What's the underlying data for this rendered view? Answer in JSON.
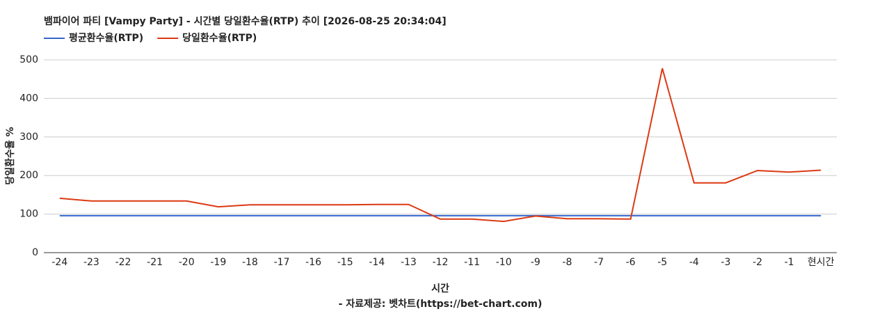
{
  "chart_data": {
    "type": "line",
    "title": "뱀파이어 파티 [Vampy Party] - 시간별 당일환수율(RTP) 추이 [2026-08-25 20:34:04]",
    "x_label": "시간",
    "y_label": "당일환수율 %",
    "footer": "- 자료제공: 벳차트(https://bet-chart.com)",
    "categories": [
      "-24",
      "-23",
      "-22",
      "-21",
      "-20",
      "-19",
      "-18",
      "-17",
      "-16",
      "-15",
      "-14",
      "-13",
      "-12",
      "-11",
      "-10",
      "-9",
      "-8",
      "-7",
      "-6",
      "-5",
      "-4",
      "-3",
      "-2",
      "-1",
      "현시간"
    ],
    "series": [
      {
        "name": "평균환수율(RTP)",
        "color": "#3366cc",
        "values": [
          96,
          96,
          96,
          96,
          96,
          96,
          96,
          96,
          96,
          96,
          96,
          96,
          96,
          96,
          96,
          96,
          96,
          96,
          96,
          96,
          96,
          96,
          96,
          96,
          96
        ]
      },
      {
        "name": "당일환수율(RTP)",
        "color": "#dc3912",
        "values": [
          141,
          134,
          134,
          134,
          134,
          119,
          124,
          124,
          124,
          124,
          125,
          125,
          87,
          87,
          81,
          95,
          88,
          88,
          87,
          478,
          181,
          181,
          213,
          209,
          214
        ]
      }
    ],
    "ylim": [
      0,
      500
    ],
    "yticks": [
      0,
      100,
      200,
      300,
      400,
      500
    ],
    "grid": true
  }
}
